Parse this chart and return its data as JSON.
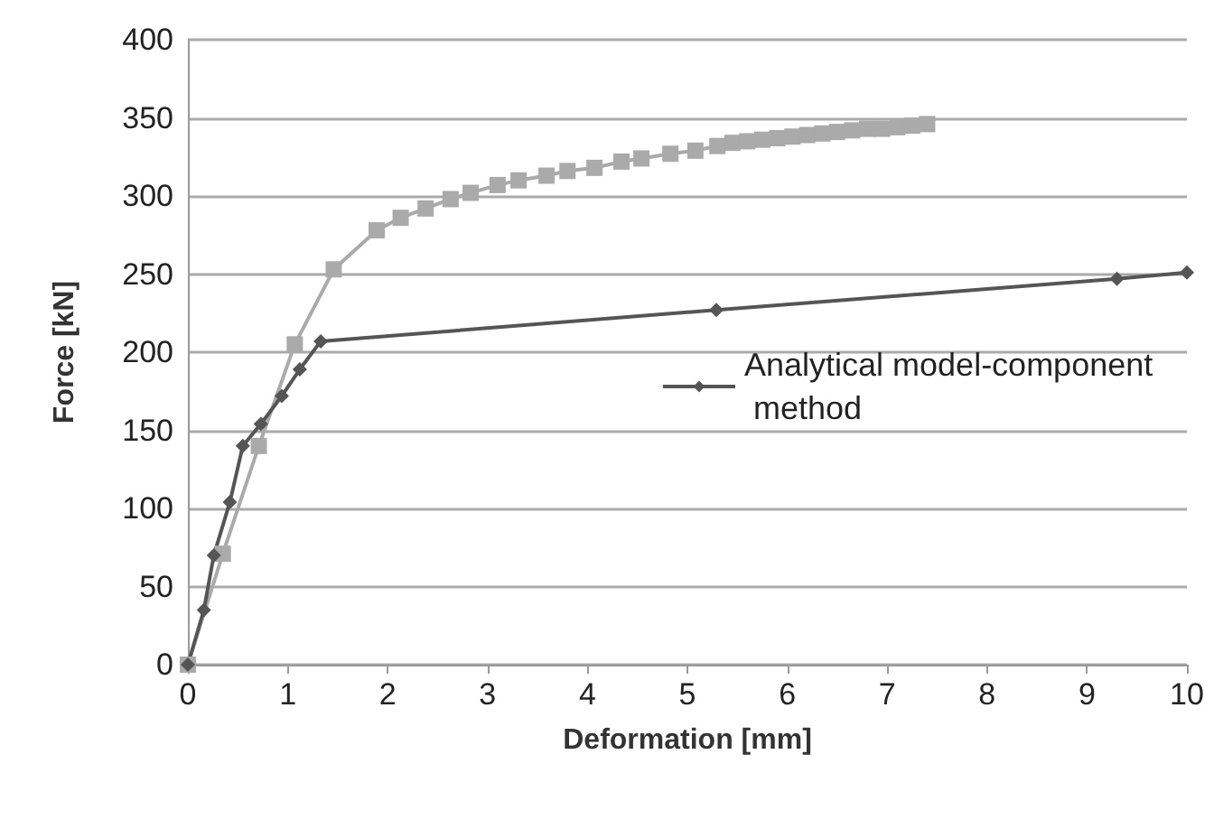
{
  "chart_data": {
    "type": "line",
    "xlabel": "Deformation [mm]",
    "ylabel": "Force [kN]",
    "xlim": [
      0,
      10
    ],
    "xticks": [
      0,
      1,
      2,
      3,
      4,
      5,
      6,
      7,
      8,
      9,
      10
    ],
    "ylim": [
      0,
      400
    ],
    "yticks": [
      0,
      50,
      100,
      150,
      200,
      250,
      300,
      350,
      400
    ],
    "grid": "y",
    "legend": "right",
    "series": [
      {
        "color": "#aaaaaa",
        "marker": "square",
        "x": [
          0,
          0.35,
          0.71,
          1.07,
          1.46,
          1.89,
          2.13,
          2.38,
          2.63,
          2.83,
          3.1,
          3.31,
          3.59,
          3.8,
          4.07,
          4.34,
          4.54,
          4.83,
          5.08,
          5.3,
          5.45,
          5.6,
          5.75,
          5.9,
          6.05,
          6.2,
          6.35,
          6.5,
          6.65,
          6.8,
          6.95,
          7.1,
          7.25,
          7.4
        ],
        "values": [
          0,
          71,
          140,
          205,
          253,
          278,
          286,
          292,
          298,
          302,
          307,
          310,
          313,
          316,
          318,
          322,
          324,
          327,
          329,
          332,
          334,
          335,
          336,
          337,
          338,
          339,
          340,
          341,
          342,
          343,
          343,
          344,
          345,
          346
        ]
      },
      {
        "name": "Analytical model-component method",
        "color": "#555555",
        "marker": "diamond",
        "x": [
          0,
          0.16,
          0.26,
          0.42,
          0.55,
          0.73,
          0.94,
          1.12,
          1.33,
          5.29,
          9.3,
          10
        ],
        "values": [
          0,
          35,
          70,
          104,
          140,
          154,
          172,
          189,
          207,
          227,
          247,
          251
        ]
      }
    ]
  }
}
